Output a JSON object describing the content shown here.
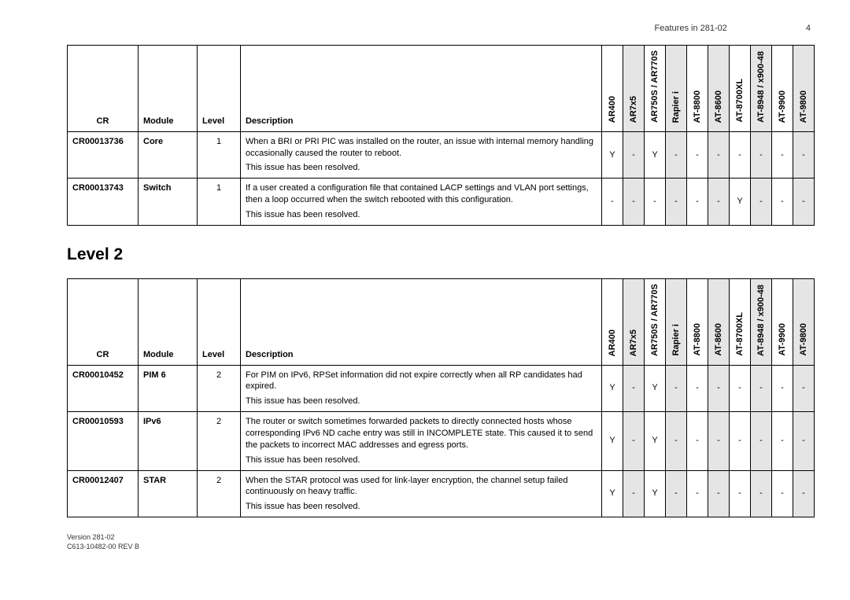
{
  "header": {
    "title": "Features in 281-02",
    "page": "4"
  },
  "section_title": "Level 2",
  "columns": {
    "cr": "CR",
    "module": "Module",
    "level": "Level",
    "description": "Description"
  },
  "platforms": [
    {
      "name": "AR400",
      "shaded": false
    },
    {
      "name": "AR7x5",
      "shaded": true
    },
    {
      "name": "AR750S / AR770S",
      "shaded": false
    },
    {
      "name": "Rapier i",
      "shaded": true
    },
    {
      "name": "AT-8800",
      "shaded": false
    },
    {
      "name": "AT-8600",
      "shaded": true
    },
    {
      "name": "AT-8700XL",
      "shaded": false
    },
    {
      "name": "AT-8948 / x900-48",
      "shaded": true
    },
    {
      "name": "AT-9900",
      "shaded": false
    },
    {
      "name": "AT-9800",
      "shaded": true
    }
  ],
  "table1_rows": [
    {
      "cr": "CR00013736",
      "module": "Core",
      "level": "1",
      "description": "When a BRI or PRI PIC was installed on the router, an issue with internal memory handling occasionally caused the router to reboot.",
      "resolved": "This issue has been resolved.",
      "pf": [
        "Y",
        "-",
        "Y",
        "-",
        "-",
        "-",
        "-",
        "-",
        "-",
        "-"
      ]
    },
    {
      "cr": "CR00013743",
      "module": "Switch",
      "level": "1",
      "description": "If a user created a configuration file that contained LACP settings and VLAN port settings, then a loop occurred when the switch rebooted with this configuration.",
      "resolved": "This issue has been resolved.",
      "pf": [
        "-",
        "-",
        "-",
        "-",
        "-",
        "-",
        "Y",
        "-",
        "-",
        "-"
      ]
    }
  ],
  "table2_rows": [
    {
      "cr": "CR00010452",
      "module": "PIM 6",
      "level": "2",
      "description": "For PIM on IPv6, RPSet information did not expire correctly when all RP candidates had expired.",
      "resolved": "This issue has been resolved.",
      "pf": [
        "Y",
        "-",
        "Y",
        "-",
        "-",
        "-",
        "-",
        "-",
        "-",
        "-"
      ]
    },
    {
      "cr": "CR00010593",
      "module": "IPv6",
      "level": "2",
      "description": "The router or switch sometimes forwarded packets to directly connected hosts whose corresponding IPv6 ND cache entry was still in INCOMPLETE state. This caused it to send the packets to incorrect MAC addresses and egress ports.",
      "resolved": "This issue has been resolved.",
      "pf": [
        "Y",
        "-",
        "Y",
        "-",
        "-",
        "-",
        "-",
        "-",
        "-",
        "-"
      ]
    },
    {
      "cr": "CR00012407",
      "module": "STAR",
      "level": "2",
      "description": "When the STAR protocol was used for link-layer encryption, the channel setup failed continuously on heavy traffic.",
      "resolved": "This issue has been resolved.",
      "pf": [
        "Y",
        "-",
        "Y",
        "-",
        "-",
        "-",
        "-",
        "-",
        "-",
        "-"
      ]
    }
  ],
  "footer": {
    "line1": "Version 281-02",
    "line2": "C613-10482-00 REV B"
  }
}
